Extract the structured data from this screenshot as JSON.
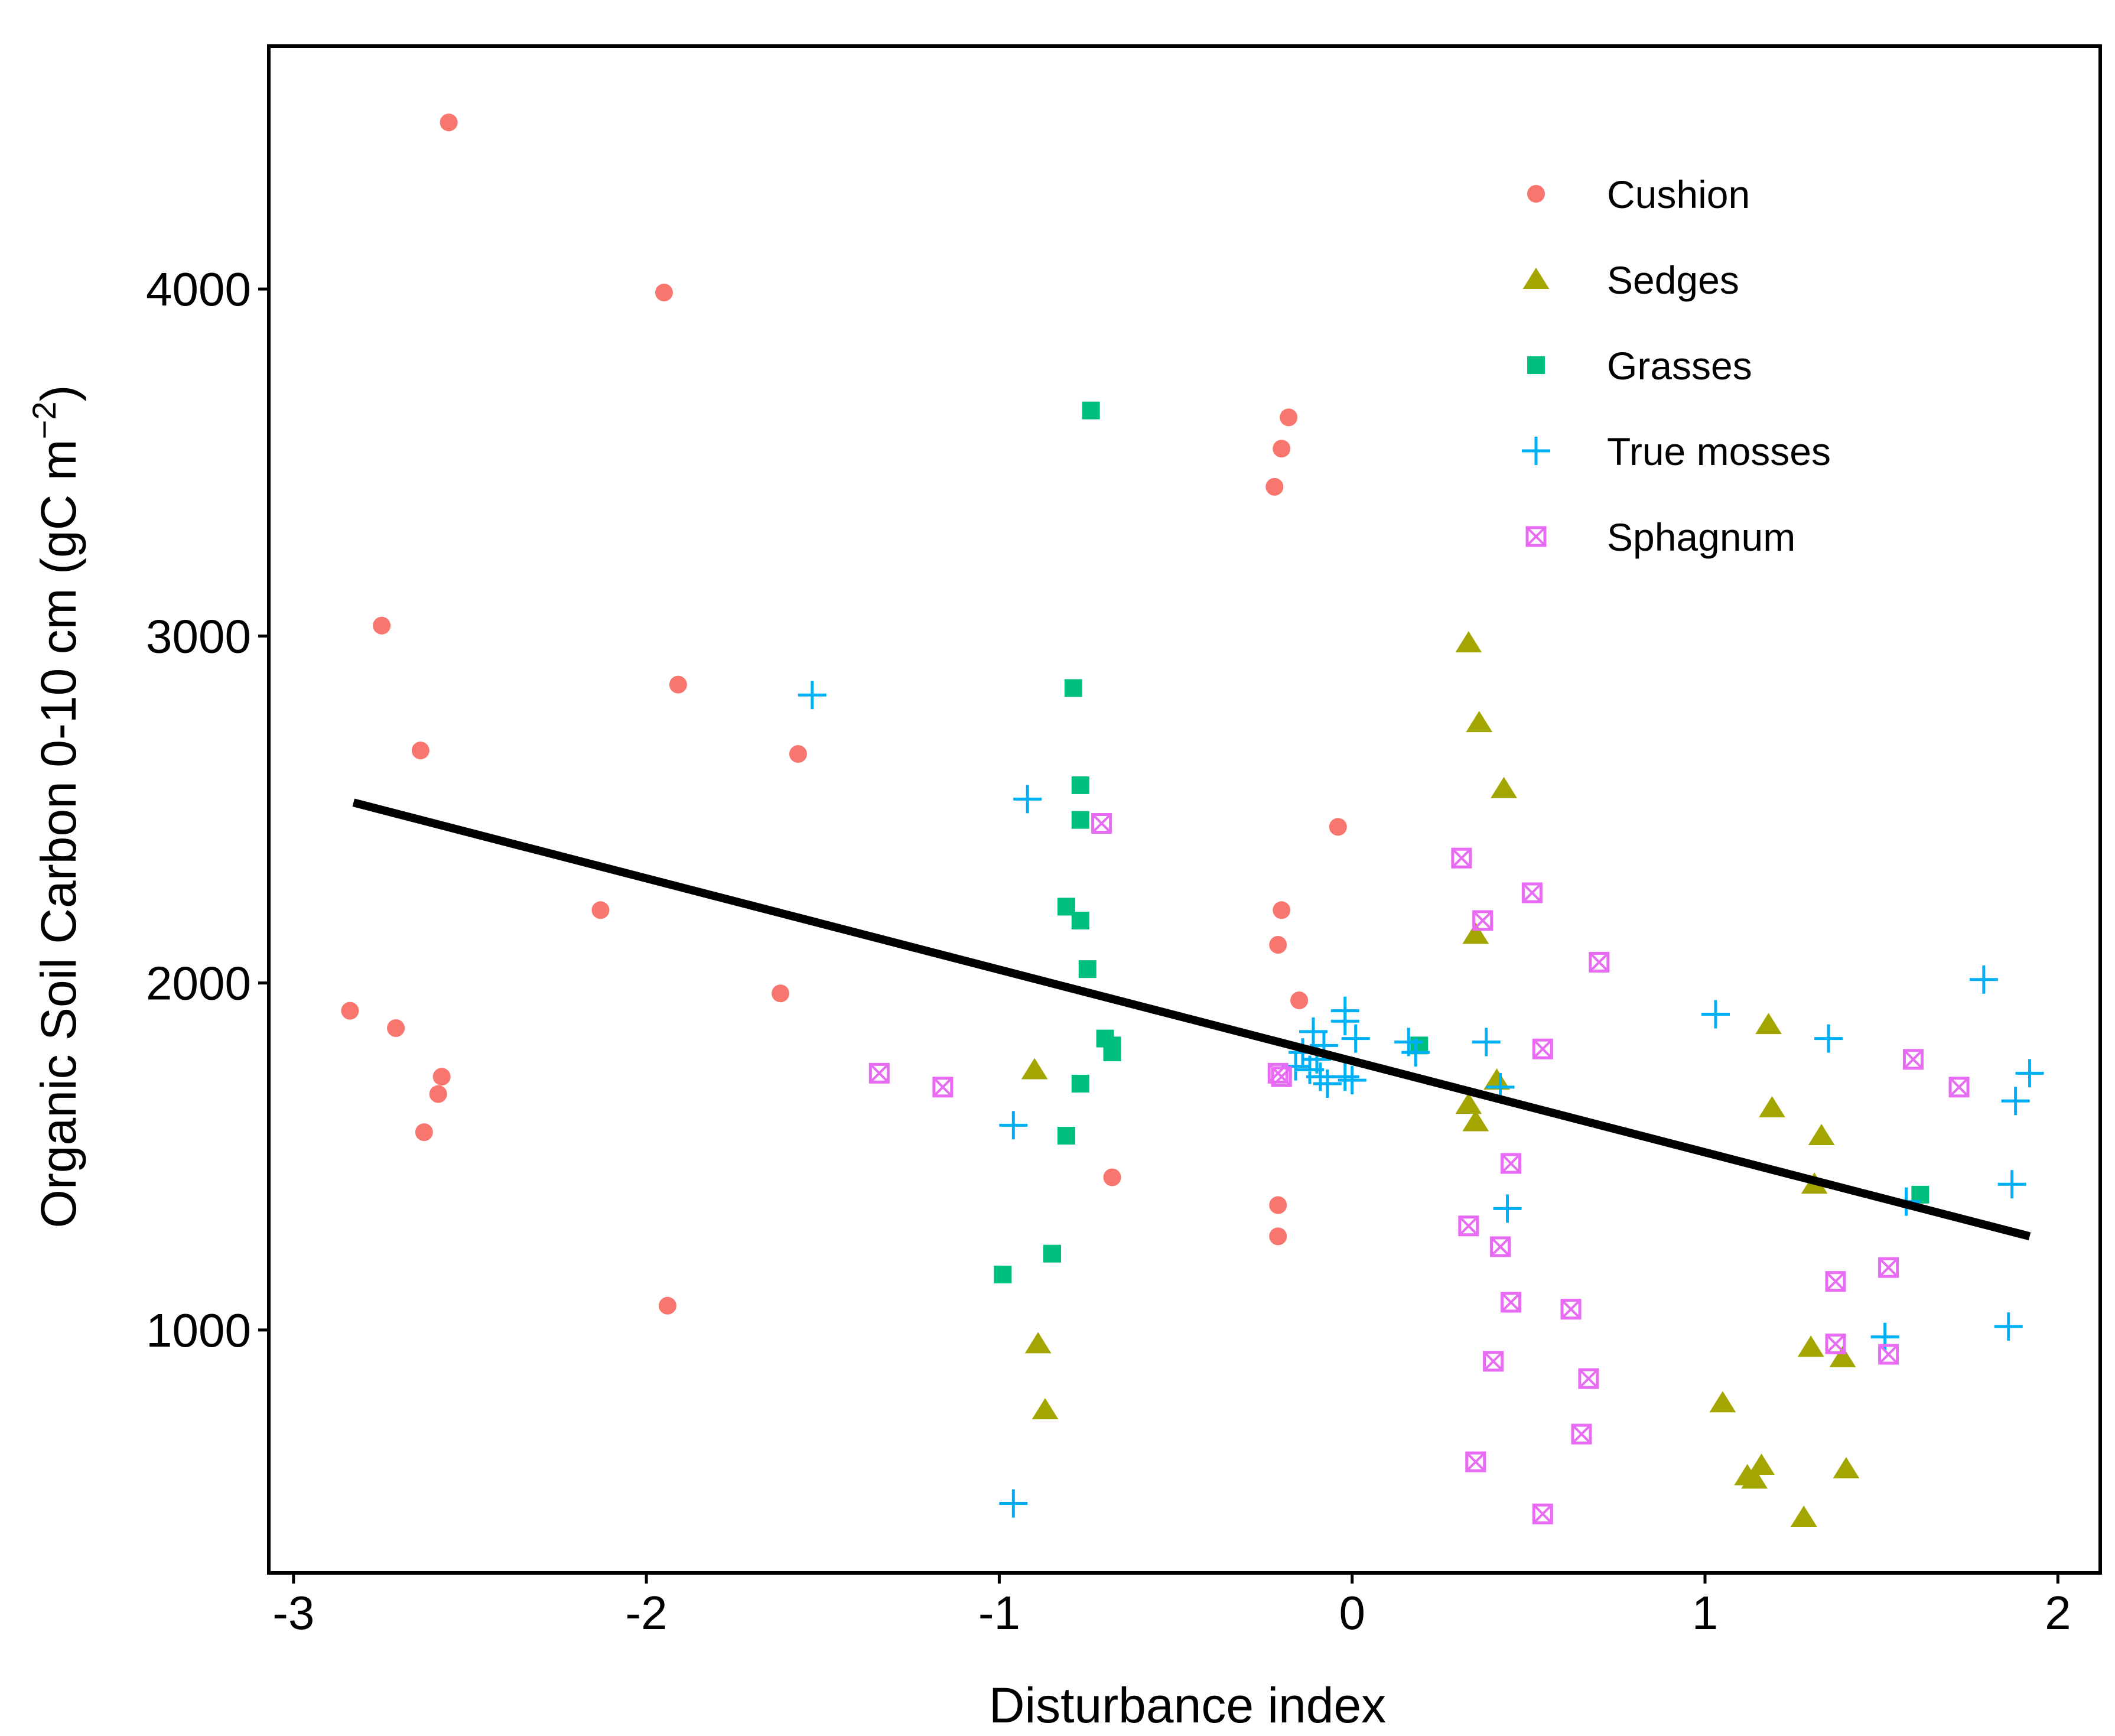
{
  "chart_data": {
    "type": "scatter",
    "title": "",
    "xlabel": "Disturbance index",
    "ylabel_main": "Organic Soil Carbon  0-10 cm (gC m",
    "ylabel_sup": "−2",
    "ylabel_close": ")",
    "xlim": [
      -3.07,
      2.12
    ],
    "ylim": [
      300,
      4700
    ],
    "xticks": [
      -3,
      -2,
      -1,
      0,
      1,
      2
    ],
    "xtick_labels": [
      "-3",
      "-2",
      "-1",
      "0",
      "1",
      "2"
    ],
    "yticks": [
      1000,
      2000,
      3000,
      4000
    ],
    "ytick_labels": [
      "1000",
      "2000",
      "3000",
      "4000"
    ],
    "grid": false,
    "legend_position": "top-right",
    "trend_line": {
      "x": [
        -2.83,
        1.92
      ],
      "y": [
        2520,
        1270
      ]
    },
    "series": [
      {
        "name": "Cushion",
        "marker": "circle",
        "color": "#F8766D",
        "points": [
          [
            -2.56,
            4480
          ],
          [
            -1.95,
            3990
          ],
          [
            -2.75,
            3030
          ],
          [
            -1.91,
            2860
          ],
          [
            -2.64,
            2670
          ],
          [
            -1.57,
            2660
          ],
          [
            -2.13,
            2210
          ],
          [
            -1.62,
            1970
          ],
          [
            -2.84,
            1920
          ],
          [
            -2.71,
            1870
          ],
          [
            -2.58,
            1730
          ],
          [
            -2.59,
            1680
          ],
          [
            -2.63,
            1570
          ],
          [
            -1.94,
            1070
          ],
          [
            -0.18,
            3630
          ],
          [
            -0.2,
            3540
          ],
          [
            -0.22,
            3430
          ],
          [
            -0.04,
            2450
          ],
          [
            -0.2,
            2210
          ],
          [
            -0.21,
            2110
          ],
          [
            -0.15,
            1950
          ],
          [
            -0.68,
            1440
          ],
          [
            -0.21,
            1360
          ],
          [
            -0.21,
            1270
          ]
        ]
      },
      {
        "name": "Sedges",
        "marker": "triangle",
        "color": "#A3A500",
        "points": [
          [
            0.33,
            2980
          ],
          [
            0.36,
            2750
          ],
          [
            0.43,
            2560
          ],
          [
            0.35,
            2140
          ],
          [
            -0.9,
            1750
          ],
          [
            0.41,
            1720
          ],
          [
            0.33,
            1650
          ],
          [
            0.35,
            1600
          ],
          [
            -0.89,
            960
          ],
          [
            -0.87,
            770
          ],
          [
            1.18,
            1880
          ],
          [
            1.19,
            1640
          ],
          [
            1.33,
            1560
          ],
          [
            1.31,
            1420
          ],
          [
            1.3,
            950
          ],
          [
            1.39,
            920
          ],
          [
            1.05,
            790
          ],
          [
            1.16,
            610
          ],
          [
            1.12,
            580
          ],
          [
            1.14,
            570
          ],
          [
            1.4,
            600
          ],
          [
            1.28,
            460
          ]
        ]
      },
      {
        "name": "Grasses",
        "marker": "square",
        "color": "#00BF7D",
        "points": [
          [
            -0.74,
            3650
          ],
          [
            -0.79,
            2850
          ],
          [
            -0.77,
            2570
          ],
          [
            -0.77,
            2470
          ],
          [
            -0.81,
            2220
          ],
          [
            -0.77,
            2180
          ],
          [
            -0.75,
            2040
          ],
          [
            -0.7,
            1840
          ],
          [
            -0.68,
            1820
          ],
          [
            -0.68,
            1800
          ],
          [
            -0.77,
            1710
          ],
          [
            -0.81,
            1560
          ],
          [
            -0.85,
            1220
          ],
          [
            -0.99,
            1160
          ],
          [
            0.19,
            1820
          ],
          [
            1.61,
            1390
          ]
        ]
      },
      {
        "name": "True mosses",
        "marker": "plus",
        "color": "#00B0F6",
        "points": [
          [
            -1.53,
            2830
          ],
          [
            -0.92,
            2530
          ],
          [
            -0.96,
            1590
          ],
          [
            -0.96,
            500
          ],
          [
            -0.02,
            1920
          ],
          [
            -0.02,
            1890
          ],
          [
            -0.11,
            1860
          ],
          [
            0.01,
            1840
          ],
          [
            -0.08,
            1820
          ],
          [
            -0.14,
            1800
          ],
          [
            -0.1,
            1780
          ],
          [
            -0.16,
            1760
          ],
          [
            -0.12,
            1750
          ],
          [
            -0.09,
            1730
          ],
          [
            -0.02,
            1730
          ],
          [
            0.0,
            1720
          ],
          [
            -0.07,
            1710
          ],
          [
            0.16,
            1830
          ],
          [
            0.18,
            1800
          ],
          [
            0.38,
            1830
          ],
          [
            0.42,
            1700
          ],
          [
            0.44,
            1350
          ],
          [
            1.03,
            1910
          ],
          [
            1.35,
            1840
          ],
          [
            1.57,
            1370
          ],
          [
            1.51,
            980
          ],
          [
            1.79,
            2010
          ],
          [
            1.92,
            1740
          ],
          [
            1.88,
            1660
          ],
          [
            1.87,
            1420
          ],
          [
            1.86,
            1010
          ]
        ]
      },
      {
        "name": "Sphagnum",
        "marker": "square-x",
        "color": "#E76BF3",
        "points": [
          [
            -0.71,
            2460
          ],
          [
            -1.34,
            1740
          ],
          [
            -1.16,
            1700
          ],
          [
            -0.21,
            1740
          ],
          [
            -0.2,
            1730
          ],
          [
            0.31,
            2360
          ],
          [
            0.37,
            2180
          ],
          [
            0.51,
            2260
          ],
          [
            0.7,
            2060
          ],
          [
            0.54,
            1810
          ],
          [
            0.45,
            1480
          ],
          [
            0.33,
            1300
          ],
          [
            0.42,
            1240
          ],
          [
            0.45,
            1080
          ],
          [
            0.62,
            1060
          ],
          [
            0.4,
            910
          ],
          [
            0.67,
            860
          ],
          [
            0.65,
            700
          ],
          [
            0.35,
            620
          ],
          [
            0.54,
            470
          ],
          [
            1.59,
            1780
          ],
          [
            1.72,
            1700
          ],
          [
            1.52,
            1180
          ],
          [
            1.37,
            1140
          ],
          [
            1.37,
            960
          ],
          [
            1.52,
            930
          ]
        ]
      }
    ]
  }
}
